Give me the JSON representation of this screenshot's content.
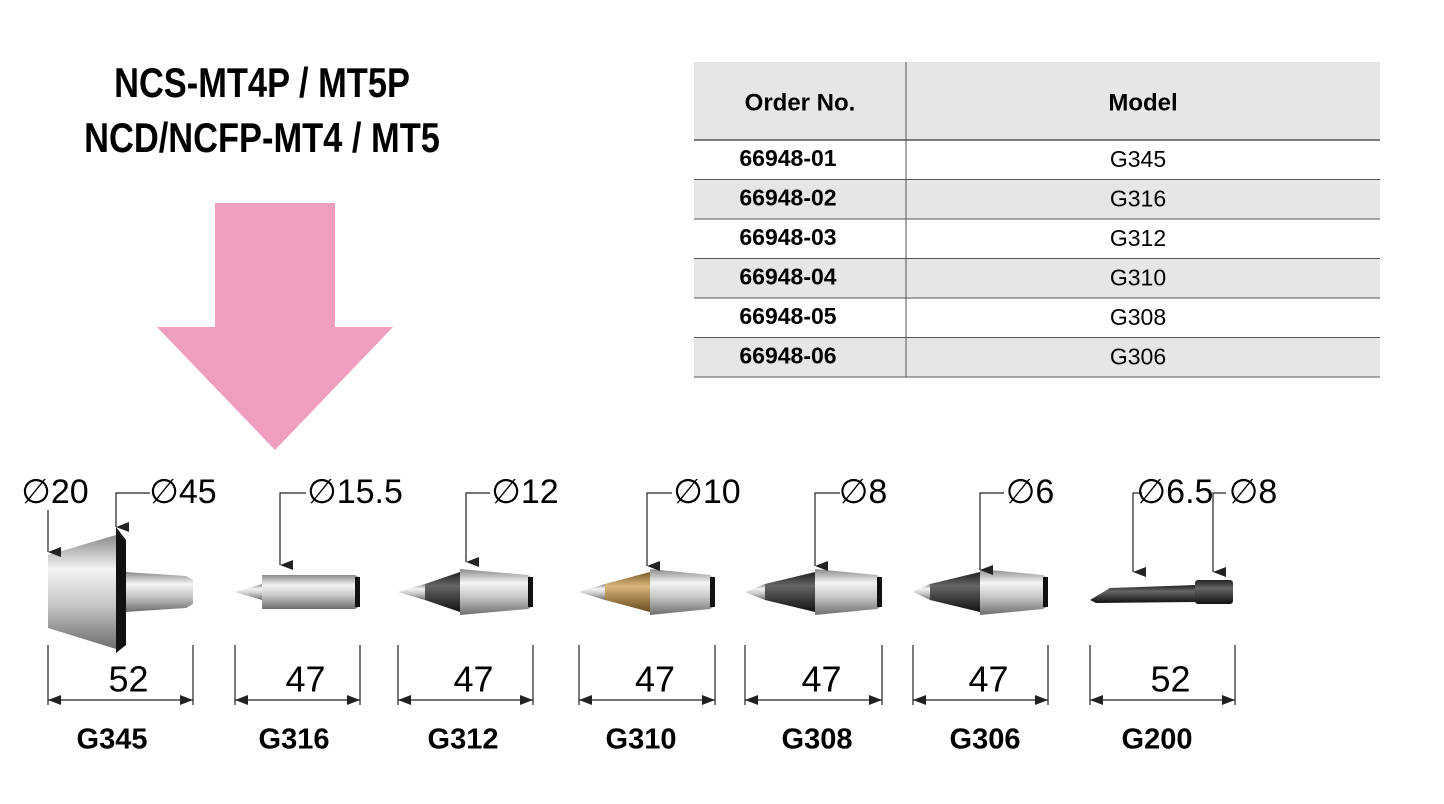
{
  "header": {
    "title_lines": [
      "NCS-MT4P / MT5P",
      "NCD/NCFP-MT4 / MT5"
    ]
  },
  "table": {
    "columns": [
      "Order No.",
      "Model"
    ],
    "rows": [
      [
        "66948-01",
        "G345"
      ],
      [
        "66948-02",
        "G316"
      ],
      [
        "66948-03",
        "G312"
      ],
      [
        "66948-04",
        "G310"
      ],
      [
        "66948-05",
        "G308"
      ],
      [
        "66948-06",
        "G306"
      ]
    ]
  },
  "products": [
    {
      "name": "G345",
      "diameters": [
        "∅20",
        "∅45"
      ],
      "length": "52"
    },
    {
      "name": "G316",
      "diameters": [
        "∅15.5"
      ],
      "length": "47"
    },
    {
      "name": "G312",
      "diameters": [
        "∅12"
      ],
      "length": "47"
    },
    {
      "name": "G310",
      "diameters": [
        "∅10"
      ],
      "length": "47"
    },
    {
      "name": "G308",
      "diameters": [
        "∅8"
      ],
      "length": "47"
    },
    {
      "name": "G306",
      "diameters": [
        "∅6"
      ],
      "length": "47"
    },
    {
      "name": "G200",
      "diameters": [
        "∅6.5",
        "∅8"
      ],
      "length": "52"
    }
  ]
}
